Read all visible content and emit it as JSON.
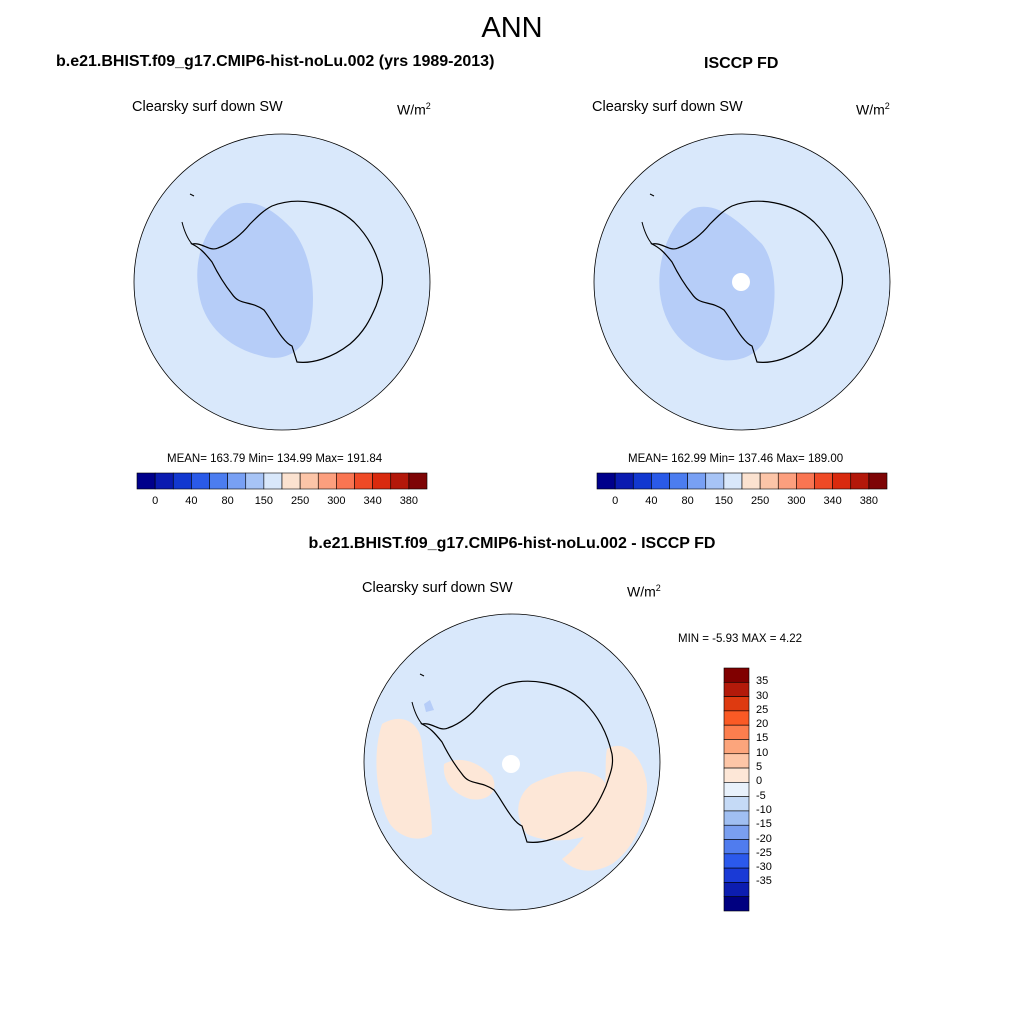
{
  "title": "ANN",
  "panels": [
    {
      "case_title": "b.e21.BHIST.f09_g17.CMIP6-hist-noLu.002 (yrs 1989-2013)",
      "variable": "Clearsky surf down SW",
      "units": "W/m",
      "units_exp": "2",
      "stats": "MEAN= 163.79  Min= 134.99  Max= 191.84"
    },
    {
      "case_title": "ISCCP FD",
      "variable": "Clearsky surf down SW",
      "units": "W/m",
      "units_exp": "2",
      "stats": "MEAN= 162.99  Min= 137.46  Max= 189.00"
    },
    {
      "case_title": "b.e21.BHIST.f09_g17.CMIP6-hist-noLu.002 - ISCCP FD",
      "variable": "Clearsky surf down SW",
      "units": "W/m",
      "units_exp": "2",
      "stats": "MIN =  -5.93 MAX =   4.22"
    }
  ],
  "colorbar_top": {
    "colors": [
      "#00008b",
      "#0a1bb0",
      "#1238d0",
      "#2a5ae8",
      "#4c7df0",
      "#78a0f4",
      "#a7c4f6",
      "#d9e8fb",
      "#fbe2d0",
      "#fcc5a8",
      "#fc9f7e",
      "#f97552",
      "#ef4a26",
      "#d92a0e",
      "#b3180a",
      "#7e0506"
    ],
    "tick_labels": [
      "0",
      "40",
      "80",
      "150",
      "250",
      "300",
      "340",
      "380"
    ]
  },
  "colorbar_diff": {
    "colors": [
      "#800000",
      "#b31a0a",
      "#de3a10",
      "#fa5a25",
      "#fc7e4e",
      "#fca57c",
      "#fdc6a7",
      "#fde7d7",
      "#e8f1fb",
      "#c5daf6",
      "#a0bff2",
      "#7a9ff0",
      "#507cee",
      "#2b59ec",
      "#1a3ad6",
      "#0c1db0",
      "#000080"
    ],
    "tick_labels": [
      "35",
      "30",
      "25",
      "20",
      "15",
      "10",
      "5",
      "0",
      "-5",
      "-10",
      "-15",
      "-20",
      "-25",
      "-30",
      "-35"
    ]
  },
  "map_colors": {
    "background": "#d9e8fb",
    "negative_region": "#b6cdf8",
    "positive_region": "#fde7d7",
    "missing": "#ffffff"
  }
}
